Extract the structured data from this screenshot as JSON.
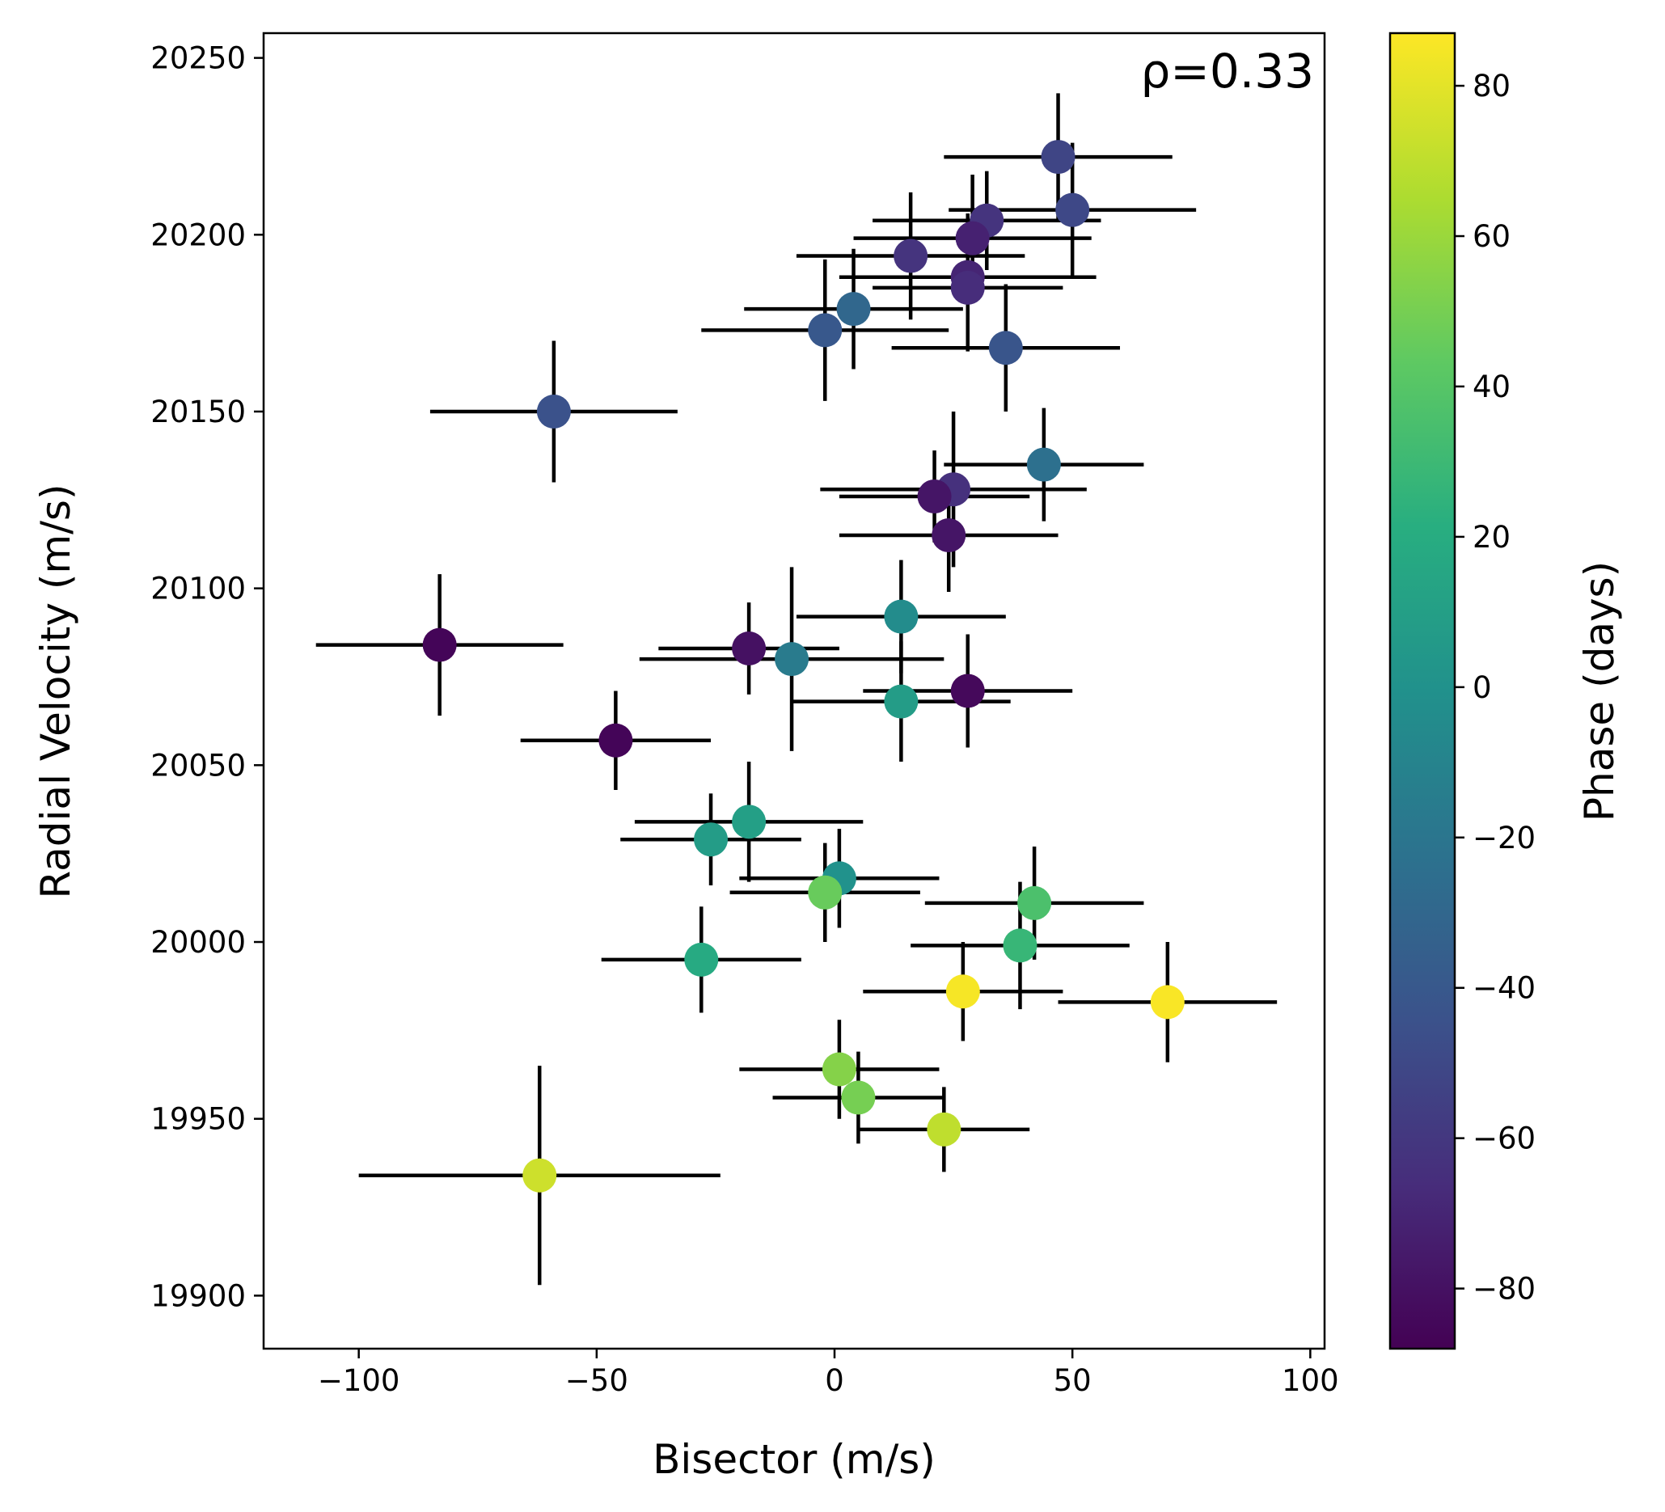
{
  "chart_data": {
    "type": "scatter",
    "xlabel": "Bisector  (m/s)",
    "ylabel": "Radial Velocity  (m/s)",
    "annotation": "ρ=0.33",
    "annotation_position": "top-right",
    "xlim": [
      -120,
      103
    ],
    "ylim": [
      19885,
      20257
    ],
    "xticks": [
      -100,
      -50,
      0,
      50,
      100
    ],
    "xtick_labels": [
      "−100",
      "−50",
      "0",
      "50",
      "100"
    ],
    "yticks": [
      19900,
      19950,
      20000,
      20050,
      20100,
      20150,
      20200,
      20250
    ],
    "ytick_labels": [
      "19900",
      "19950",
      "20000",
      "20050",
      "20100",
      "20150",
      "20200",
      "20250"
    ],
    "colorbar": {
      "label": "Phase  (days)",
      "colormap": "viridis",
      "range": [
        -88,
        87
      ],
      "ticks": [
        -80,
        -60,
        -40,
        -20,
        0,
        20,
        40,
        60,
        80
      ],
      "tick_labels": [
        "−80",
        "−60",
        "−40",
        "−20",
        "0",
        "20",
        "40",
        "60",
        "80"
      ]
    },
    "points": [
      {
        "x": 47,
        "y": 20222,
        "xerr": 24,
        "yerr": 18,
        "phase": -52
      },
      {
        "x": 50,
        "y": 20207,
        "xerr": 26,
        "yerr": 19,
        "phase": -50
      },
      {
        "x": 32,
        "y": 20204,
        "xerr": 24,
        "yerr": 14,
        "phase": -62
      },
      {
        "x": 29,
        "y": 20199,
        "xerr": 25,
        "yerr": 18,
        "phase": -72
      },
      {
        "x": 16,
        "y": 20194,
        "xerr": 24,
        "yerr": 18,
        "phase": -62
      },
      {
        "x": 28,
        "y": 20188,
        "xerr": 27,
        "yerr": 18,
        "phase": -70
      },
      {
        "x": 28,
        "y": 20185,
        "xerr": 20,
        "yerr": 18,
        "phase": -66
      },
      {
        "x": 4,
        "y": 20179,
        "xerr": 23,
        "yerr": 17,
        "phase": -30
      },
      {
        "x": -2,
        "y": 20173,
        "xerr": 26,
        "yerr": 20,
        "phase": -40
      },
      {
        "x": 36,
        "y": 20168,
        "xerr": 24,
        "yerr": 18,
        "phase": -42
      },
      {
        "x": -59,
        "y": 20150,
        "xerr": 26,
        "yerr": 20,
        "phase": -44
      },
      {
        "x": 44,
        "y": 20135,
        "xerr": 21,
        "yerr": 16,
        "phase": -24
      },
      {
        "x": 25,
        "y": 20128,
        "xerr": 28,
        "yerr": 22,
        "phase": -64
      },
      {
        "x": 21,
        "y": 20126,
        "xerr": 20,
        "yerr": 13,
        "phase": -78
      },
      {
        "x": 24,
        "y": 20115,
        "xerr": 23,
        "yerr": 16,
        "phase": -78
      },
      {
        "x": 14,
        "y": 20092,
        "xerr": 22,
        "yerr": 16,
        "phase": -4
      },
      {
        "x": -83,
        "y": 20084,
        "xerr": 26,
        "yerr": 20,
        "phase": -86
      },
      {
        "x": -18,
        "y": 20083,
        "xerr": 19,
        "yerr": 13,
        "phase": -80
      },
      {
        "x": -9,
        "y": 20080,
        "xerr": 32,
        "yerr": 26,
        "phase": -16
      },
      {
        "x": 28,
        "y": 20071,
        "xerr": 22,
        "yerr": 16,
        "phase": -84
      },
      {
        "x": 14,
        "y": 20068,
        "xerr": 23,
        "yerr": 17,
        "phase": 8
      },
      {
        "x": -46,
        "y": 20057,
        "xerr": 20,
        "yerr": 14,
        "phase": -86
      },
      {
        "x": -18,
        "y": 20034,
        "xerr": 24,
        "yerr": 17,
        "phase": 10
      },
      {
        "x": -26,
        "y": 20029,
        "xerr": 19,
        "yerr": 13,
        "phase": 8
      },
      {
        "x": 1,
        "y": 20018,
        "xerr": 21,
        "yerr": 14,
        "phase": 0
      },
      {
        "x": -2,
        "y": 20014,
        "xerr": 20,
        "yerr": 14,
        "phase": 46
      },
      {
        "x": 42,
        "y": 20011,
        "xerr": 23,
        "yerr": 16,
        "phase": 36
      },
      {
        "x": 39,
        "y": 19999,
        "xerr": 23,
        "yerr": 18,
        "phase": 28
      },
      {
        "x": -28,
        "y": 19995,
        "xerr": 21,
        "yerr": 15,
        "phase": 18
      },
      {
        "x": 27,
        "y": 19986,
        "xerr": 21,
        "yerr": 14,
        "phase": 85
      },
      {
        "x": 70,
        "y": 19983,
        "xerr": 23,
        "yerr": 17,
        "phase": 86
      },
      {
        "x": 1,
        "y": 19964,
        "xerr": 21,
        "yerr": 14,
        "phase": 54
      },
      {
        "x": 5,
        "y": 19956,
        "xerr": 18,
        "yerr": 13,
        "phase": 50
      },
      {
        "x": 23,
        "y": 19947,
        "xerr": 18,
        "yerr": 12,
        "phase": 70
      },
      {
        "x": -62,
        "y": 19934,
        "xerr": 38,
        "yerr": 31,
        "phase": 74
      }
    ]
  }
}
